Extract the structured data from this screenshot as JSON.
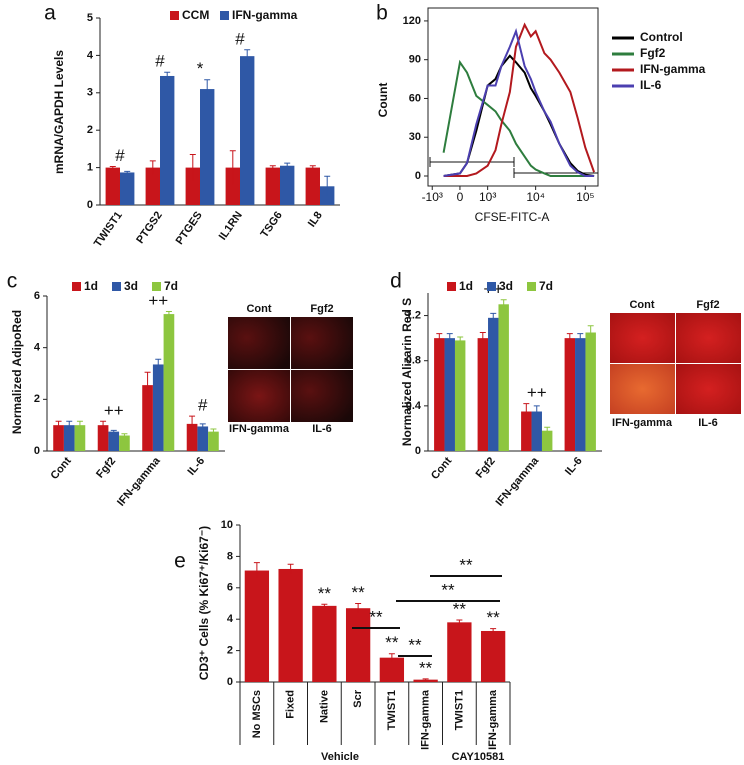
{
  "chart_data": [
    {
      "panel_label": "a",
      "type": "bar",
      "y_label": "mRNA/GAPDH Levels",
      "categories": [
        "TWIST1",
        "PTGS2",
        "PTGES",
        "IL1RN",
        "TSG6",
        "IL8"
      ],
      "series": [
        {
          "name": "CCM",
          "color": "#c8151b",
          "values": [
            1,
            1,
            1,
            1,
            1,
            1
          ],
          "errors": [
            0.03,
            0.18,
            0.35,
            0.45,
            0.05,
            0.05
          ]
        },
        {
          "name": "IFN-gamma",
          "color": "#2f58a6",
          "values": [
            0.87,
            3.45,
            3.1,
            3.98,
            1.05,
            0.5
          ],
          "errors": [
            0.03,
            0.1,
            0.25,
            0.17,
            0.07,
            0.27
          ]
        }
      ],
      "annotations": [
        "#",
        "#",
        "*",
        "#",
        null,
        null
      ],
      "ylim": [
        0,
        5
      ],
      "yticks": [
        0,
        1,
        2,
        3,
        4,
        5
      ],
      "legend": "top"
    },
    {
      "panel_label": "b",
      "type": "line",
      "x_label": "CFSE-FITC-A",
      "y_label": "Count",
      "xscale": "biexponential",
      "x": [
        -500,
        0,
        200,
        500,
        1000,
        1500,
        2000,
        3000,
        4000,
        6000,
        8000,
        10000,
        15000,
        20000,
        30000,
        50000,
        70000,
        100000,
        150000
      ],
      "series": [
        {
          "name": "Control",
          "color": "#000000",
          "values": [
            0,
            2,
            10,
            35,
            70,
            75,
            85,
            93,
            88,
            80,
            68,
            62,
            50,
            40,
            25,
            10,
            4,
            1,
            0
          ]
        },
        {
          "name": "Fgf2",
          "color": "#2e7d3e",
          "values": [
            18,
            88,
            80,
            62,
            55,
            50,
            43,
            35,
            25,
            15,
            8,
            5,
            2,
            0,
            0,
            0,
            0,
            0,
            0
          ]
        },
        {
          "name": "IFN-gamma",
          "color": "#b3191e",
          "values": [
            0,
            0,
            0,
            2,
            8,
            20,
            40,
            65,
            100,
            117,
            108,
            112,
            95,
            90,
            80,
            65,
            45,
            22,
            3
          ]
        },
        {
          "name": "IL-6",
          "color": "#4b3fb0",
          "values": [
            0,
            2,
            10,
            40,
            70,
            70,
            85,
            100,
            112,
            85,
            75,
            65,
            50,
            42,
            25,
            8,
            3,
            0,
            0
          ]
        }
      ],
      "xlim": [
        -1250,
        180000
      ],
      "xticks": [
        {
          "value": -1000,
          "label": "-10³"
        },
        0,
        {
          "value": 1000,
          "label": "10³"
        },
        {
          "value": 10000,
          "label": "10⁴"
        },
        {
          "value": 100000,
          "label": "10⁵"
        }
      ],
      "ylim": [
        0,
        130
      ],
      "yticks": [
        0,
        30,
        60,
        90,
        120
      ],
      "legend": "right"
    },
    {
      "panel_label": "c",
      "type": "bar",
      "y_label": "Normalized AdipoRed",
      "categories": [
        "Cont",
        "Fgf2",
        "IFN-gamma",
        "IL-6"
      ],
      "series": [
        {
          "name": "1d",
          "color": "#c8151b",
          "values": [
            1,
            1,
            2.55,
            1.05
          ],
          "errors": [
            0.15,
            0.15,
            0.5,
            0.3
          ]
        },
        {
          "name": "3d",
          "color": "#2f58a6",
          "values": [
            1,
            0.75,
            3.35,
            0.95
          ],
          "errors": [
            0.15,
            0.05,
            0.2,
            0.1
          ]
        },
        {
          "name": "7d",
          "color": "#8dc63f",
          "values": [
            1,
            0.6,
            5.3,
            0.75
          ],
          "errors": [
            0.15,
            0.07,
            0.1,
            0.1
          ]
        }
      ],
      "annotations": [
        null,
        "++",
        "++",
        "#"
      ],
      "ylim": [
        0,
        6
      ],
      "yticks": [
        0,
        2,
        4,
        6
      ],
      "legend": "top",
      "image_labels": [
        "Cont",
        "Fgf2",
        "IFN-gamma",
        "IL-6"
      ]
    },
    {
      "panel_label": "d",
      "type": "bar",
      "y_label": "Normalized Alizarin Red S",
      "categories": [
        "Cont",
        "Fgf2",
        "IFN-gamma",
        "IL-6"
      ],
      "series": [
        {
          "name": "1d",
          "color": "#c8151b",
          "values": [
            1,
            1,
            0.35,
            1
          ],
          "errors": [
            0.04,
            0.05,
            0.07,
            0.04
          ]
        },
        {
          "name": "3d",
          "color": "#2f58a6",
          "values": [
            1,
            1.18,
            0.35,
            1
          ],
          "errors": [
            0.04,
            0.04,
            0.05,
            0.04
          ]
        },
        {
          "name": "7d",
          "color": "#8dc63f",
          "values": [
            0.98,
            1.3,
            0.18,
            1.05
          ],
          "errors": [
            0.03,
            0.04,
            0.03,
            0.06
          ]
        }
      ],
      "annotations": [
        null,
        "++",
        "++",
        null
      ],
      "ylim": [
        0,
        1.4
      ],
      "yticks": [
        0,
        0.4,
        0.8,
        1.2
      ],
      "legend": "top",
      "image_labels": [
        "Cont",
        "Fgf2",
        "IFN-gamma",
        "IL-6"
      ]
    },
    {
      "panel_label": "e",
      "type": "bar",
      "y_label": "CD3⁺ Cells (% Ki67⁺/Ki67⁻)",
      "categories": [
        "No MSCs",
        "Fixed",
        "Native",
        "Scr",
        "TWIST1",
        "IFN-gamma",
        "TWIST1",
        "IFN-gamma"
      ],
      "series": [
        {
          "color": "#c8151b",
          "values": [
            7.1,
            7.2,
            4.85,
            4.7,
            1.55,
            0.15,
            3.8,
            3.25
          ],
          "errors": [
            0.5,
            0.3,
            0.1,
            0.3,
            0.25,
            0.05,
            0.15,
            0.15
          ]
        }
      ],
      "annotations": [
        null,
        null,
        "**",
        "**",
        "**",
        "**",
        "**",
        "**"
      ],
      "group_labels": [
        "Vehicle",
        "CAY10581"
      ],
      "comparison_labels": [
        "**",
        "**",
        "**",
        "**"
      ],
      "ylim": [
        0,
        10
      ],
      "yticks": [
        0,
        2,
        4,
        6,
        8,
        10
      ]
    }
  ]
}
